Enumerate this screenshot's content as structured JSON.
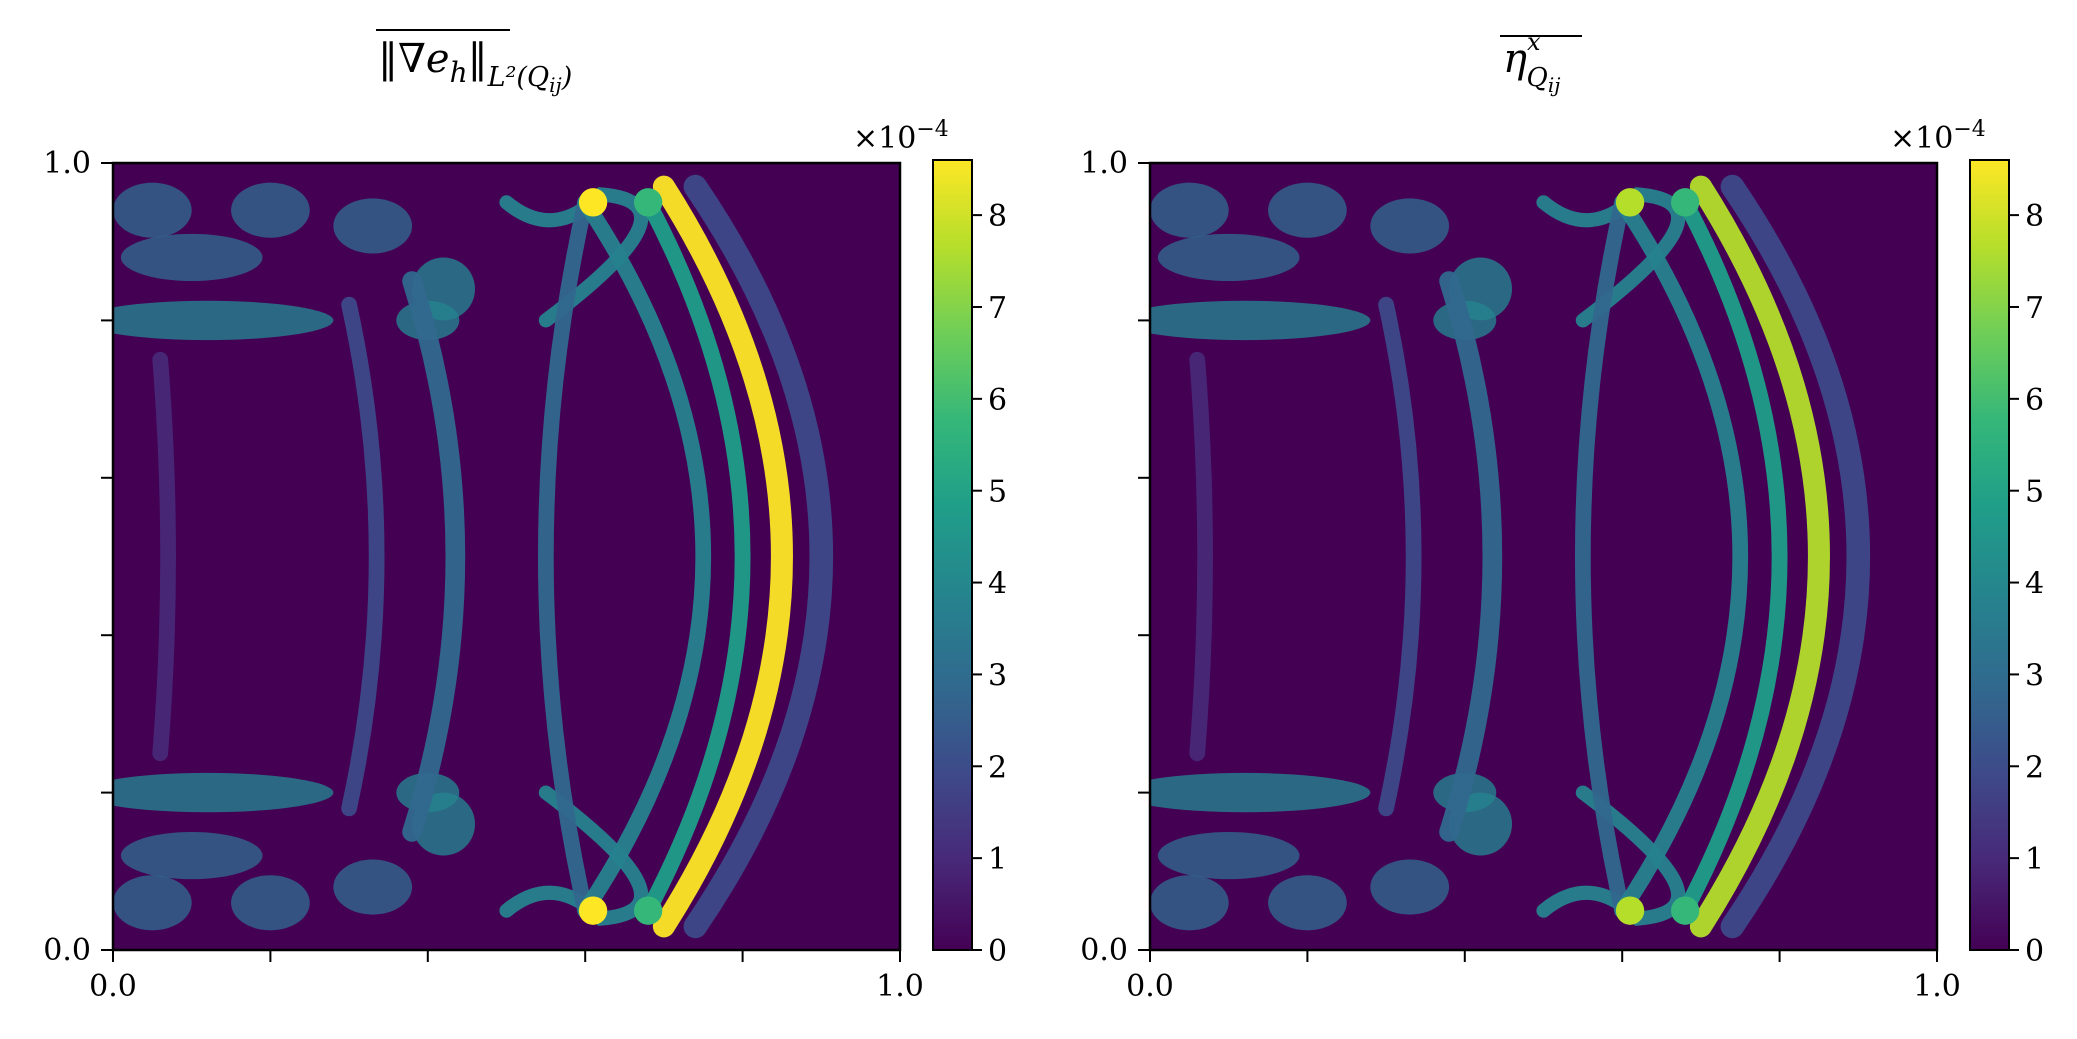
{
  "colormap": [
    "#440154",
    "#482878",
    "#3e4989",
    "#31688e",
    "#26828e",
    "#1f9e89",
    "#35b779",
    "#6ece58",
    "#b5de2b",
    "#fde725"
  ],
  "chart_data": [
    {
      "type": "heatmap",
      "title": "‖∇e_h‖_L²(Q_ij)",
      "title_main": "‖∇e",
      "title_sub": "h",
      "title_tail": "‖",
      "title_norm_sub": "L²(Q",
      "title_norm_sub2": "ij",
      "title_norm_close": ")",
      "xlim": [
        0.0,
        1.0
      ],
      "ylim": [
        0.0,
        1.0
      ],
      "x_tick_labels": [
        "0.0",
        "1.0"
      ],
      "y_tick_labels": [
        "0.0",
        "1.0"
      ],
      "x_ticks": [
        0.0,
        0.2,
        0.4,
        0.6,
        0.8,
        1.0
      ],
      "y_ticks": [
        0.0,
        0.2,
        0.4,
        0.6,
        0.8,
        1.0
      ],
      "colorbar": {
        "range": [
          0,
          8.6
        ],
        "ticks": [
          "0",
          "1",
          "2",
          "3",
          "4",
          "5",
          "6",
          "7",
          "8"
        ],
        "tick_values": [
          0,
          1,
          2,
          3,
          4,
          5,
          6,
          7,
          8
        ],
        "scale_label": "×10",
        "scale_exp": "−4"
      },
      "peak_value": 8.6,
      "inner_arc_peak": 5.0,
      "lens_edge_peak": 4.0
    },
    {
      "type": "heatmap",
      "title": "η^x_Q_ij",
      "title_main": "η",
      "title_sup": "x",
      "title_sub": "Q",
      "title_sub2": "ij",
      "xlim": [
        0.0,
        1.0
      ],
      "ylim": [
        0.0,
        1.0
      ],
      "x_tick_labels": [
        "0.0",
        "1.0"
      ],
      "y_tick_labels": [
        "0.0",
        "1.0"
      ],
      "x_ticks": [
        0.0,
        0.2,
        0.4,
        0.6,
        0.8,
        1.0
      ],
      "y_ticks": [
        0.0,
        0.2,
        0.4,
        0.6,
        0.8,
        1.0
      ],
      "colorbar": {
        "range": [
          0,
          8.6
        ],
        "ticks": [
          "0",
          "1",
          "2",
          "3",
          "4",
          "5",
          "6",
          "7",
          "8"
        ],
        "tick_values": [
          0,
          1,
          2,
          3,
          4,
          5,
          6,
          7,
          8
        ],
        "scale_label": "×10",
        "scale_exp": "−4"
      },
      "peak_value": 8.0,
      "inner_arc_peak": 5.0,
      "lens_edge_peak": 4.0
    }
  ]
}
